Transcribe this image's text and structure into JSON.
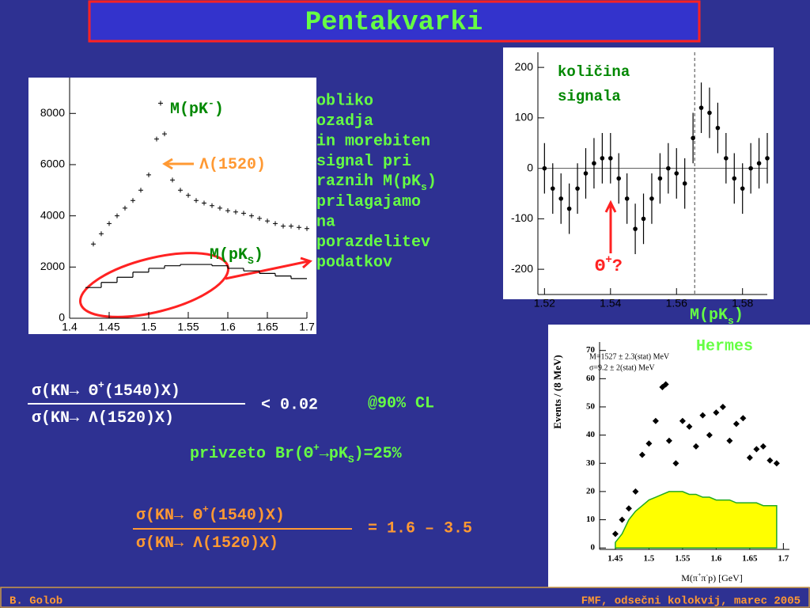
{
  "title": "Pentakvarki",
  "left_labels": {
    "pk_minus": [
      {
        "text": "M(pK"
      },
      {
        "sup": "-"
      },
      {
        "text": ")"
      }
    ],
    "lambda": [
      {
        "text": "Λ(1520)"
      }
    ],
    "pk_s": [
      {
        "text": "M(pK"
      },
      {
        "sub": "S"
      },
      {
        "text": ")"
      }
    ]
  },
  "description": [
    "obliko",
    "ozadja",
    "in morebiten",
    "signal pri",
    [
      {
        "text": "raznih M(pK"
      },
      {
        "sub": "s"
      },
      {
        "text": ")"
      }
    ],
    "prilagajamo",
    "na",
    "porazdelitev",
    "podatkov"
  ],
  "right_labels": {
    "signal": [
      "količina",
      "signala"
    ],
    "theta": [
      {
        "text": "Θ"
      },
      {
        "sup": "+"
      },
      {
        "text": "?"
      }
    ],
    "pk_s": [
      {
        "text": "M(pK"
      },
      {
        "sub": "s"
      },
      {
        "text": ")"
      }
    ],
    "hermes": "Hermes"
  },
  "hermes_labels": {
    "mass": "M=1527 ± 2.3(stat) MeV",
    "width": "σ=9.2 ± 2(stat) MeV",
    "ylabel": "Events / (8 MeV)",
    "xlabel": [
      {
        "text": "M(π"
      },
      {
        "sup": "+"
      },
      {
        "text": "π"
      },
      {
        "sup": "-"
      },
      {
        "text": "p) [GeV]"
      }
    ]
  },
  "ratio1": {
    "numerator": [
      {
        "text": "σ(KN→ Θ"
      },
      {
        "sup": "+"
      },
      {
        "text": "(1540)X)"
      }
    ],
    "denominator": [
      {
        "text": "σ(KN→ Λ(1520)X)"
      }
    ],
    "result": "< 0.02",
    "cl": "@90% CL"
  },
  "assumption": [
    {
      "text": "privzeto Br(Θ"
    },
    {
      "sup": "+"
    },
    {
      "text": "→pK"
    },
    {
      "sub": "S"
    },
    {
      "text": ")=25%"
    }
  ],
  "ratio2": {
    "numerator": [
      {
        "text": "σ(KN→ Θ"
      },
      {
        "sup": "+"
      },
      {
        "text": "(1540)X)"
      }
    ],
    "denominator": [
      {
        "text": "σ(KN→ Λ(1520)X)"
      }
    ],
    "result": "= 1.6 – 3.5"
  },
  "footer": {
    "author": "B. Golob",
    "venue": "FMF, odsečni kolokvij, marec 2005"
  },
  "chart_data": [
    {
      "type": "line",
      "xlim": [
        1.4,
        1.7
      ],
      "ylim": [
        0,
        9400
      ],
      "xticks": [
        1.4,
        1.45,
        1.5,
        1.55,
        1.6,
        1.65,
        1.7
      ],
      "yticks": [
        0,
        2000,
        4000,
        6000,
        8000
      ],
      "series": [
        {
          "type": "scatter",
          "color": "#000000",
          "x": [
            1.43,
            1.44,
            1.45,
            1.46,
            1.47,
            1.48,
            1.49,
            1.5,
            1.51,
            1.515,
            1.52,
            1.53,
            1.54,
            1.55,
            1.56,
            1.57,
            1.58,
            1.59,
            1.6,
            1.61,
            1.62,
            1.63,
            1.64,
            1.65,
            1.66,
            1.67,
            1.68,
            1.69,
            1.7
          ],
          "values": [
            2900,
            3300,
            3700,
            4000,
            4300,
            4600,
            5000,
            5600,
            7000,
            8400,
            7200,
            5400,
            5000,
            4800,
            4600,
            4500,
            4400,
            4300,
            4200,
            4150,
            4100,
            4000,
            3900,
            3800,
            3700,
            3600,
            3600,
            3550,
            3500
          ]
        },
        {
          "type": "step",
          "color": "#000000",
          "width": 0.02,
          "x": [
            1.43,
            1.45,
            1.47,
            1.49,
            1.51,
            1.53,
            1.55,
            1.57,
            1.59,
            1.61,
            1.63,
            1.65,
            1.67,
            1.69
          ],
          "values": [
            1200,
            1400,
            1600,
            1800,
            1950,
            2050,
            2100,
            2100,
            2050,
            1950,
            1850,
            1750,
            1650,
            1550
          ]
        }
      ]
    },
    {
      "type": "scatter",
      "xlim": [
        1.518,
        1.5875
      ],
      "ylim": [
        -250,
        230
      ],
      "xticks": [
        1.52,
        1.54,
        1.56,
        1.58
      ],
      "yticks": [
        -200,
        -100,
        0,
        100,
        200
      ],
      "vline": 1.5655,
      "series": [
        {
          "type": "errorbar",
          "color": "#000000",
          "x": [
            1.52,
            1.5225,
            1.525,
            1.5275,
            1.53,
            1.5325,
            1.535,
            1.5375,
            1.54,
            1.5425,
            1.545,
            1.5475,
            1.55,
            1.5525,
            1.555,
            1.5575,
            1.56,
            1.5625,
            1.565,
            1.5675,
            1.57,
            1.5725,
            1.575,
            1.5775,
            1.58,
            1.5825,
            1.585,
            1.5875
          ],
          "values": [
            0,
            -40,
            -60,
            -80,
            -40,
            -10,
            10,
            20,
            20,
            -20,
            -60,
            -120,
            -100,
            -60,
            -20,
            0,
            -10,
            -30,
            60,
            120,
            110,
            80,
            20,
            -20,
            -40,
            0,
            10,
            20
          ],
          "errors": [
            50,
            50,
            50,
            50,
            50,
            50,
            50,
            50,
            50,
            50,
            50,
            50,
            50,
            50,
            50,
            50,
            50,
            50,
            50,
            50,
            50,
            50,
            50,
            50,
            50,
            50,
            50,
            50
          ]
        }
      ]
    },
    {
      "type": "scatter",
      "xlim": [
        1.403,
        1.709
      ],
      "ylim": [
        -2.2,
        73
      ],
      "xticks": [
        1.45,
        1.5,
        1.55,
        1.6,
        1.65,
        1.7
      ],
      "yticks": [
        0,
        10,
        20,
        30,
        40,
        50,
        60,
        70
      ],
      "series": [
        {
          "type": "area",
          "color": "#ffff00",
          "x": [
            1.45,
            1.46,
            1.47,
            1.48,
            1.49,
            1.5,
            1.51,
            1.52,
            1.53,
            1.54,
            1.55,
            1.56,
            1.57,
            1.58,
            1.59,
            1.6,
            1.61,
            1.62,
            1.63,
            1.64,
            1.65,
            1.66,
            1.67,
            1.68,
            1.69
          ],
          "values": [
            2,
            5,
            10,
            13,
            15,
            17,
            18,
            19,
            20,
            20,
            20,
            19,
            19,
            18,
            18,
            17,
            17,
            17,
            16,
            16,
            16,
            16,
            15,
            15,
            15
          ]
        },
        {
          "type": "scatter",
          "color": "#000000",
          "x": [
            1.45,
            1.46,
            1.47,
            1.48,
            1.49,
            1.5,
            1.51,
            1.52,
            1.525,
            1.53,
            1.54,
            1.55,
            1.56,
            1.57,
            1.58,
            1.59,
            1.6,
            1.61,
            1.62,
            1.63,
            1.64,
            1.65,
            1.66,
            1.67,
            1.68,
            1.69
          ],
          "values": [
            5,
            10,
            14,
            20,
            33,
            37,
            45,
            57,
            58,
            38,
            30,
            45,
            43,
            36,
            47,
            40,
            48,
            50,
            38,
            44,
            46,
            32,
            35,
            36,
            31,
            30
          ]
        }
      ]
    }
  ]
}
